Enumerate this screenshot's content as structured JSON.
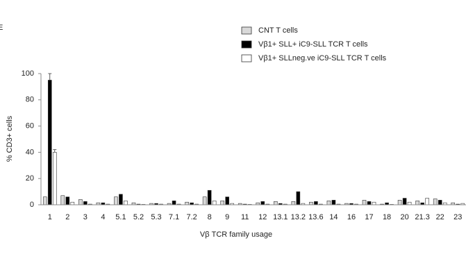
{
  "panel_label": "E",
  "chart_data": {
    "type": "bar",
    "y_label": "% CD3+ cells",
    "x_label": "Vβ TCR family usage",
    "categories": [
      "1",
      "2",
      "3",
      "4",
      "5.1",
      "5.2",
      "5.3",
      "7.1",
      "7.2",
      "8",
      "9",
      "11",
      "12",
      "13.1",
      "13.2",
      "13.6",
      "14",
      "16",
      "17",
      "18",
      "20",
      "21.3",
      "22",
      "23"
    ],
    "series": [
      {
        "name": "CNT T cells",
        "color": "#d9d9d9",
        "values": [
          6,
          7,
          4,
          1.5,
          6,
          1.5,
          1,
          1,
          2,
          6,
          3,
          1,
          1.5,
          2.5,
          2.5,
          2,
          3,
          1,
          3.5,
          0.5,
          3.5,
          3,
          4.5,
          1.5
        ]
      },
      {
        "name": "Vβ1+ SLL+ iC9-SLL TCR T cells",
        "color": "#000000",
        "values": [
          95,
          6,
          2.5,
          1.5,
          8,
          0.5,
          1,
          3,
          1.5,
          11,
          6,
          0.5,
          2.5,
          1,
          10,
          2.5,
          3.5,
          1,
          2.5,
          1.5,
          5,
          1.5,
          3.5,
          0.5
        ],
        "errors": [
          5,
          null,
          null,
          null,
          null,
          null,
          null,
          null,
          null,
          null,
          null,
          null,
          null,
          null,
          null,
          null,
          null,
          null,
          null,
          null,
          null,
          null,
          null,
          null
        ]
      },
      {
        "name": "Vβ1+ SLLneg.ve iC9-SLL TCR T cells",
        "color": "#ffffff",
        "values": [
          40,
          2,
          0.5,
          0.5,
          3,
          0.3,
          0.5,
          0.5,
          0.5,
          3,
          1,
          0.3,
          0.5,
          0.5,
          1,
          0.5,
          0.5,
          0.5,
          2,
          0.3,
          2,
          5,
          1.5,
          1
        ],
        "errors": [
          2,
          null,
          null,
          null,
          null,
          null,
          null,
          null,
          null,
          null,
          null,
          null,
          null,
          null,
          null,
          null,
          null,
          null,
          null,
          null,
          null,
          null,
          null,
          null
        ]
      }
    ],
    "ylim": [
      0,
      100
    ],
    "yticks": [
      0,
      20,
      40,
      60,
      80,
      100
    ],
    "grid": false,
    "legend": "top-right"
  }
}
